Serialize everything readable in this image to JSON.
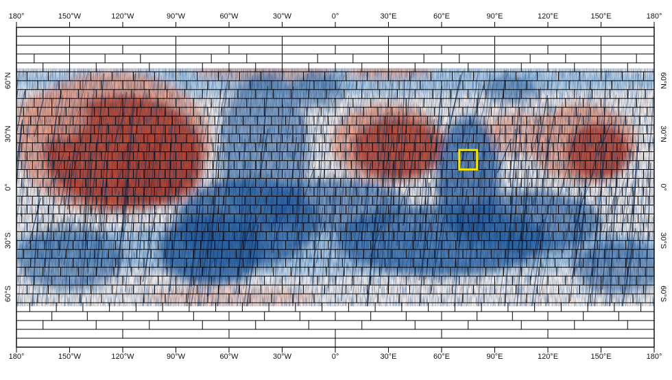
{
  "map": {
    "lon_labels": [
      "180°",
      "150°W",
      "120°W",
      "90°W",
      "60°W",
      "30°W",
      "0°",
      "30°E",
      "60°E",
      "90°E",
      "120°E",
      "150°E",
      "180°"
    ],
    "lat_labels": [
      "60°N",
      "30°N",
      "0°",
      "30°S",
      "60°S"
    ],
    "lon_values": [
      -180,
      -150,
      -120,
      -90,
      -60,
      -30,
      0,
      30,
      60,
      90,
      120,
      150,
      180
    ],
    "lat_values": [
      60,
      30,
      0,
      -30,
      -60
    ],
    "lat_extent": [
      90,
      -90
    ],
    "data_lat_extent": [
      67,
      -67
    ],
    "highlight_box": {
      "lon_range": [
        70,
        80
      ],
      "lat_range": [
        10,
        21
      ],
      "color": "#f2e600"
    },
    "colors": {
      "warm": "#b8412e",
      "warm_light": "#e8a08a",
      "cool": "#2b5f9e",
      "cool_light": "#a9c6e3",
      "neutral": "#f4ecea",
      "grid": "#000000"
    }
  }
}
